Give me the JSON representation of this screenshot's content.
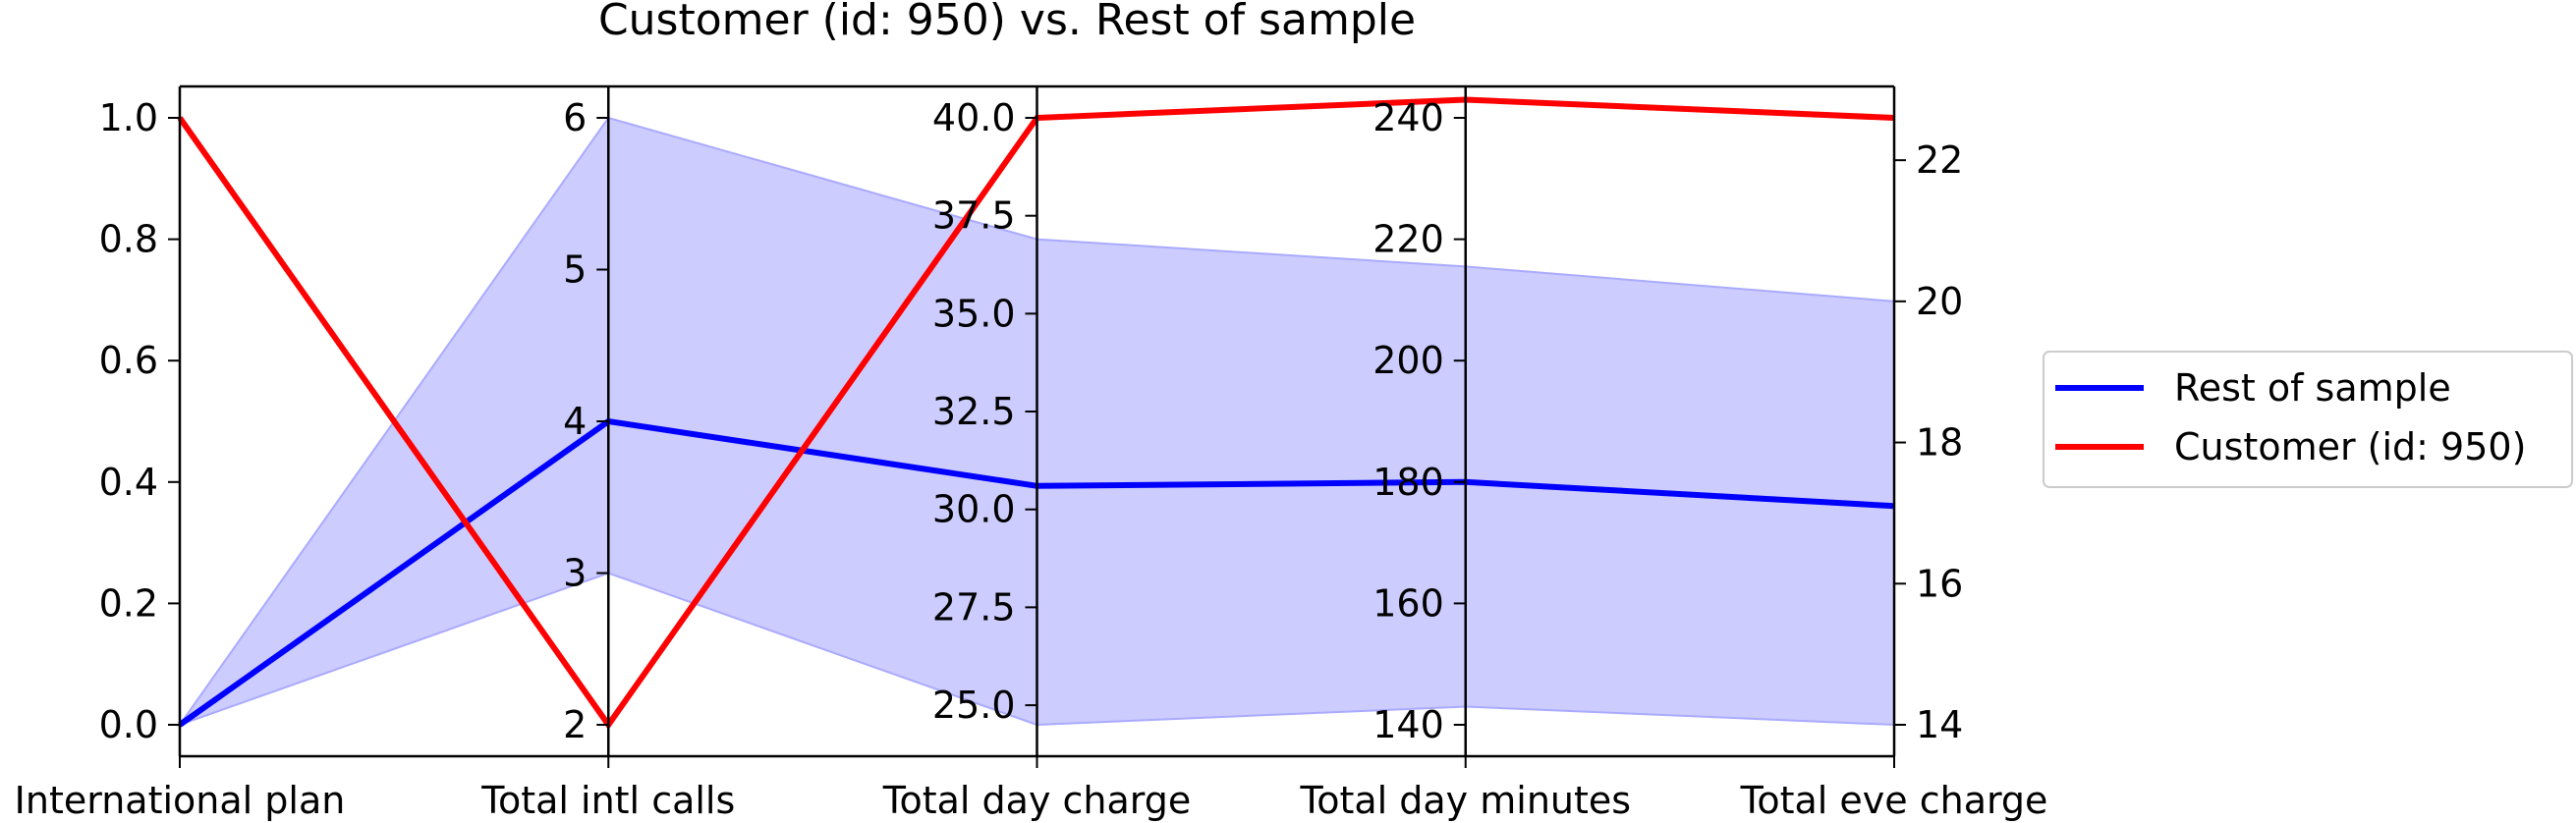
{
  "chart_data": {
    "type": "line",
    "subtype": "parallel-coordinates",
    "title": "Customer (id: 950) vs. Rest of sample",
    "axes": [
      {
        "name": "International plan",
        "ticks": [
          "0.0",
          "0.2",
          "0.4",
          "0.6",
          "0.8",
          "1.0"
        ],
        "range": [
          0.0,
          1.0
        ]
      },
      {
        "name": "Total intl calls",
        "ticks": [
          "2",
          "3",
          "4",
          "5",
          "6"
        ],
        "range": [
          2,
          6
        ]
      },
      {
        "name": "Total day charge",
        "ticks": [
          "25.0",
          "27.5",
          "30.0",
          "32.5",
          "35.0",
          "37.5",
          "40.0"
        ],
        "range": [
          24.5,
          40.0
        ]
      },
      {
        "name": "Total day minutes",
        "ticks": [
          "140",
          "160",
          "180",
          "200",
          "220",
          "240"
        ],
        "range": [
          140,
          240
        ]
      },
      {
        "name": "Total eve charge",
        "ticks": [
          "14",
          "16",
          "18",
          "20",
          "22"
        ],
        "range": [
          14,
          22.6
        ]
      }
    ],
    "series": [
      {
        "name": "Rest of sample",
        "color": "#0000ff",
        "values": [
          0.0,
          4,
          30.6,
          180.0,
          17.1
        ],
        "band": {
          "color": "#ccccff",
          "lower": [
            0.0,
            3,
            24.5,
            143.0,
            14.0
          ],
          "upper": [
            0.0,
            6,
            36.9,
            215.5,
            20.0
          ]
        }
      },
      {
        "name": "Customer (id: 950)",
        "color": "#ff0000",
        "values": [
          1.0,
          2,
          40.0,
          243.0,
          22.6
        ]
      }
    ],
    "legend": {
      "position": "right",
      "entries": [
        "Rest of sample",
        "Customer (id: 950)"
      ]
    },
    "grid": false
  }
}
